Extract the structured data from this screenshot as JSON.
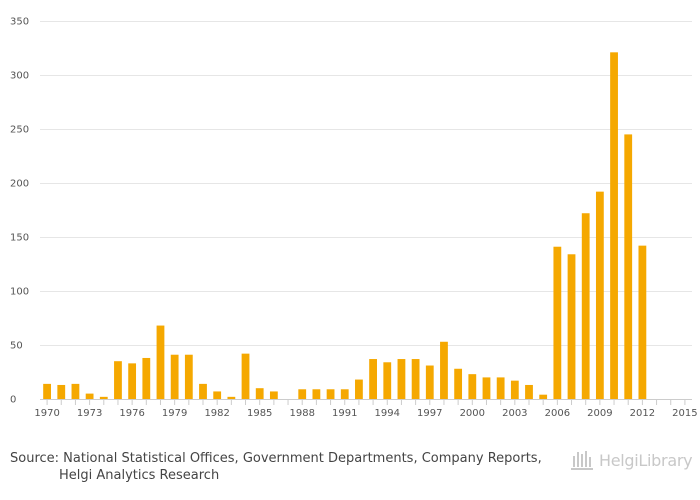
{
  "chart_data": {
    "type": "bar",
    "title": "",
    "xlabel": "",
    "ylabel": "",
    "ylim": [
      0,
      350
    ],
    "yticks": [
      0,
      50,
      100,
      150,
      200,
      250,
      300,
      350
    ],
    "grid": true,
    "bar_color": "#f5a800",
    "categories": [
      "1970",
      "1971",
      "1972",
      "1973",
      "1974",
      "1975",
      "1976",
      "1977",
      "1978",
      "1979",
      "1980",
      "1981",
      "1982",
      "1983",
      "1984",
      "1985",
      "1986",
      "1987",
      "1988",
      "1989",
      "1990",
      "1991",
      "1992",
      "1993",
      "1994",
      "1995",
      "1996",
      "1997",
      "1998",
      "1999",
      "2000",
      "2001",
      "2002",
      "2003",
      "2004",
      "2005",
      "2006",
      "2007",
      "2008",
      "2009",
      "2010",
      "2011",
      "2012",
      "2013",
      "2014",
      "2015"
    ],
    "values": [
      14,
      13,
      14,
      5,
      2,
      35,
      33,
      38,
      68,
      41,
      41,
      14,
      7,
      2,
      42,
      10,
      7,
      0,
      9,
      9,
      9,
      9,
      18,
      37,
      34,
      37,
      37,
      31,
      53,
      28,
      23,
      20,
      20,
      17,
      13,
      4,
      141,
      134,
      172,
      192,
      321,
      245,
      142,
      0,
      0,
      0
    ],
    "tick_labels": [
      "1970",
      "1973",
      "1976",
      "1979",
      "1982",
      "1985",
      "1988",
      "1991",
      "1994",
      "1997",
      "2000",
      "2003",
      "2006",
      "2009",
      "2012",
      "2015"
    ]
  },
  "footer": {
    "source_line1": "Source: National Statistical Offices, Government Departments, Company Reports,",
    "source_line2": "Helgi Analytics Research",
    "brand_text": "HelgiLibrary"
  }
}
